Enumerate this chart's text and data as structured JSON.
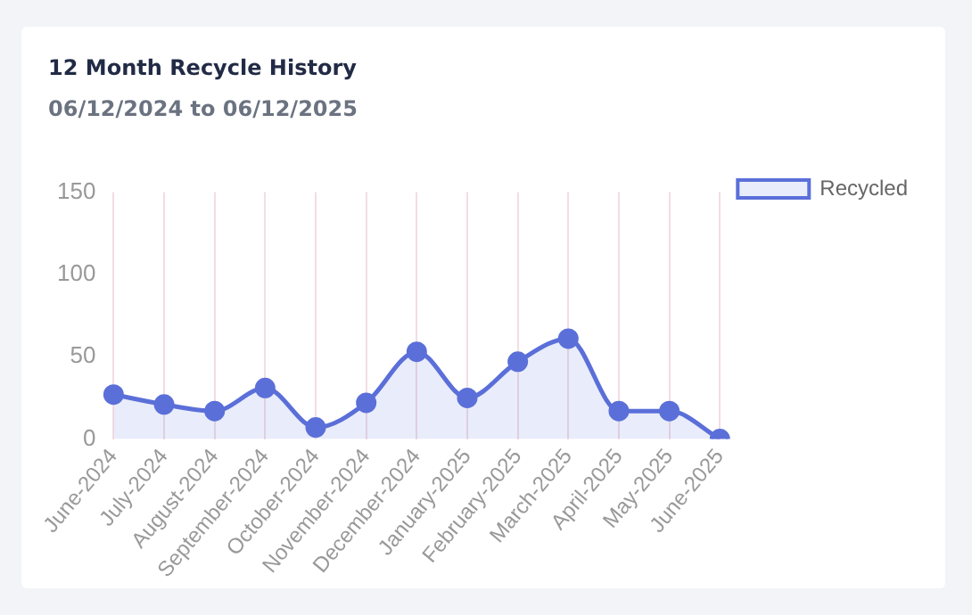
{
  "chart_data": {
    "type": "area",
    "title": "12 Month Recycle History",
    "subtitle": "06/12/2024 to 06/12/2025",
    "categories": [
      "June-2024",
      "July-2024",
      "August-2024",
      "September-2024",
      "October-2024",
      "November-2024",
      "December-2024",
      "January-2025",
      "February-2025",
      "March-2025",
      "April-2025",
      "May-2025",
      "June-2025"
    ],
    "series": [
      {
        "name": "Recycled",
        "color": "#5b6fd9",
        "values": [
          27,
          21,
          17,
          31,
          7,
          22,
          53,
          25,
          47,
          61,
          17,
          17,
          0
        ]
      }
    ],
    "ylim": [
      0,
      150
    ],
    "yticks": [
      0,
      50,
      100,
      150
    ],
    "grid": "x",
    "legend": "top right",
    "marker": "circle"
  }
}
